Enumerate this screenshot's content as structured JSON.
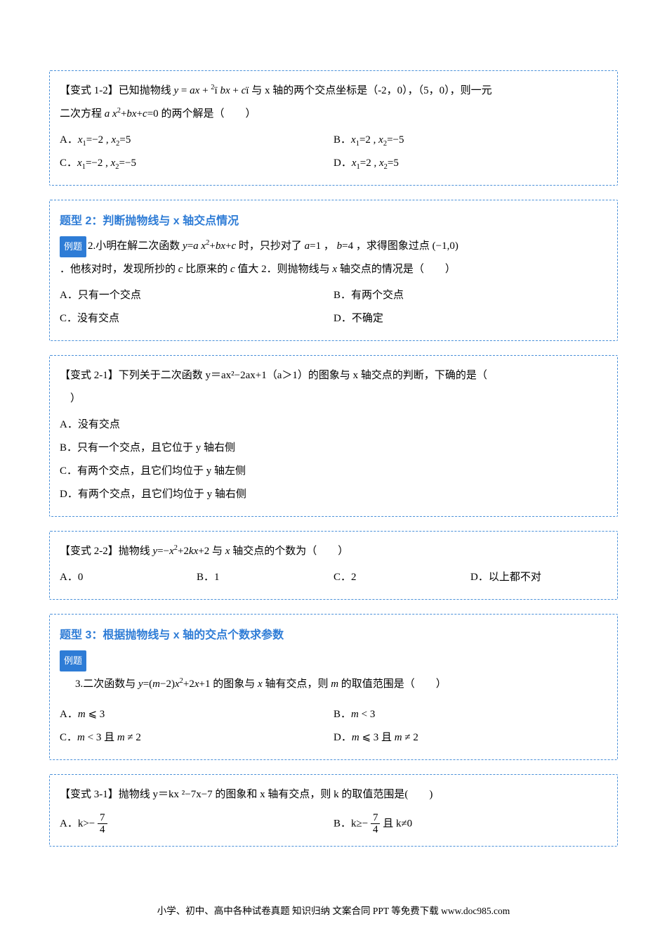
{
  "colors": {
    "border": "#4a90d9",
    "section_title": "#2e7cd6",
    "tag_bg": "#2e7cd6",
    "tag_fg": "#ffffff",
    "text": "#000000"
  },
  "typography": {
    "body_fontsize": 15,
    "title_fontsize": 16,
    "footer_fontsize": 13.5
  },
  "b1": {
    "lead": "【变式 1-2】已知抛物线 ",
    "eq1_html": "<span class=\"math-i\">y</span> = <span class=\"math-i\">ax</span> + <span class=\"math\"><sup>2</sup></span>&iuml; <span class=\"math-i\">bx</span> + <span class=\"math-i\">c</span>&iuml;",
    "mid1": " 与 x 轴的两个交点坐标是（-2，0），（5，0），则一元",
    "line2a": "二次方程 ",
    "eq2_html": "<span class=\"math-i\">a x</span><sup>2</sup>+<span class=\"math-i\">bx</span>+<span class=\"math-i\">c</span>=0",
    "line2b": " 的两个解是（　　）",
    "optA_html": "A．<span class=\"math-i\">x</span><sub>1</sub>=−2 , <span class=\"math-i\">x</span><sub>2</sub>=5",
    "optB_html": "B．<span class=\"math-i\">x</span><sub>1</sub>=2 , <span class=\"math-i\">x</span><sub>2</sub>=−5",
    "optC_html": "C．<span class=\"math-i\">x</span><sub>1</sub>=−2 , <span class=\"math-i\">x</span><sub>2</sub>=−5",
    "optD_html": "D．<span class=\"math-i\">x</span><sub>1</sub>=2 , <span class=\"math-i\">x</span><sub>2</sub>=5"
  },
  "b2": {
    "section": "题型 2：判断抛物线与 x 轴交点情况",
    "tag": "例题",
    "num": "2.",
    "q_a": "小明在解二次函数 ",
    "eq_html": "<span class=\"math-i\">y</span>=<span class=\"math-i\">a x</span><sup>2</sup>+<span class=\"math-i\">bx</span>+<span class=\"math-i\">c</span>",
    "q_b": " 时，只抄对了 ",
    "a_html": "<span class=\"math-i\">a</span>=1",
    "q_c": " ， ",
    "b_html": "<span class=\"math-i\">b</span>=4",
    "q_d": " ，求得图象过点 ",
    "pt_html": "(−1,0)",
    "line2a": "．他核对时，发现所抄的 ",
    "c_var": "<span class=\"math-i\">c</span>",
    "line2b": " 比原来的 ",
    "line2c": " 值大 2．则抛物线与 ",
    "x_var": "<span class=\"math-i\">x</span>",
    "line2d": " 轴交点的情况是（　　）",
    "optA": "A．只有一个交点",
    "optB": "B．有两个交点",
    "optC": "C．没有交点",
    "optD": "D．不确定"
  },
  "b3": {
    "lead": "【变式 2-1】下列关于二次函数 y＝ax²−2ax+1（a＞1）的图象与 x 轴交点的判断，下确的是（",
    "close": "　）",
    "optA": "A．没有交点",
    "optB": "B．只有一个交点，且它位于 y 轴右侧",
    "optC": "C．有两个交点，且它们均位于 y 轴左侧",
    "optD": "D．有两个交点，且它们均位于 y 轴右侧"
  },
  "b4": {
    "lead": "【变式 2-2】抛物线 ",
    "eq_html": "<span class=\"math-i\">y</span>=−<span class=\"math-i\">x</span><sup>2</sup>+2<span class=\"math-i\">kx</span>+2",
    "mid": " 与 ",
    "x_var": "<span class=\"math-i\">x</span>",
    "tail": " 轴交点的个数为（　　）",
    "optA": "A．0",
    "optB": "B．1",
    "optC": "C．2",
    "optD": "D．以上都不对"
  },
  "b5": {
    "section": "题型 3：根据抛物线与 x 轴的交点个数求参数",
    "tag": "例题",
    "num": "3.",
    "q_a": "二次函数与 ",
    "eq_html": "<span class=\"math-i\">y</span>=(<span class=\"math-i\">m</span>−2)<span class=\"math-i\">x</span><sup>2</sup>+2<span class=\"math-i\">x</span>+1",
    "q_b": " 的图象与 ",
    "x_var": "<span class=\"math-i\">x</span>",
    "q_c": " 轴有交点，则 ",
    "m_var": "<span class=\"math-i\">m</span>",
    "q_d": " 的取值范围是（　　）",
    "optA_html": "A．<span class=\"math-i\">m</span> ⩽ 3",
    "optB_html": "B．<span class=\"math-i\">m</span> < 3",
    "optC_html": "C．<span class=\"math-i\">m</span> < 3 且 <span class=\"math-i\">m</span> ≠ 2",
    "optD_html": "D．<span class=\"math-i\">m</span> ⩽ 3 且 <span class=\"math-i\">m</span> ≠ 2"
  },
  "b6": {
    "lead": "【变式 3-1】抛物线 y＝kx ²−7x−7 的图象和 x 轴有交点，则 k 的取值范围是(　　)",
    "optA_pre": "A．k>− ",
    "frac_num": "7",
    "frac_den": "4",
    "optB_pre": "B．k≥− ",
    "optB_post": " 且 k≠0"
  },
  "footer": "小学、初中、高中各种试卷真题  知识归纳  文案合同  PPT 等免费下载   www.doc985.com"
}
